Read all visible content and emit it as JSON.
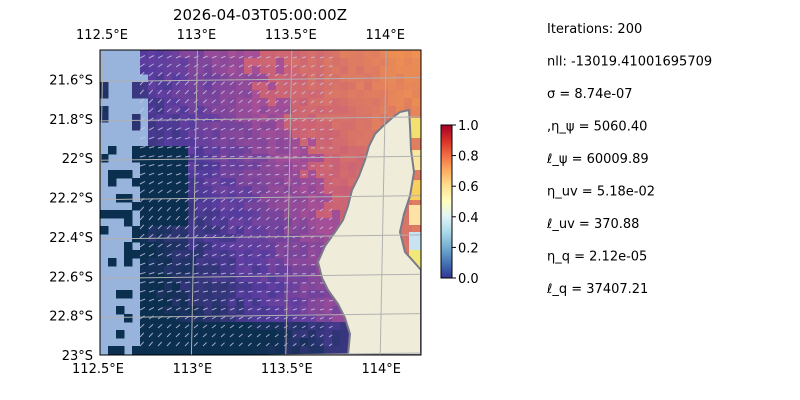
{
  "chart_data": {
    "type": "heatmap",
    "title": "2026-04-03T05:00:00Z",
    "xlabel": "",
    "ylabel": "",
    "x_ticks": [
      "112.5°E",
      "113°E",
      "113.5°E",
      "114°E"
    ],
    "x_tick_values": [
      112.5,
      113.0,
      113.5,
      114.0
    ],
    "y_ticks": [
      "21.6°S",
      "21.8°S",
      "22°S",
      "22.2°S",
      "22.4°S",
      "22.6°S",
      "22.8°S",
      "23°S"
    ],
    "y_tick_values": [
      -21.6,
      -21.8,
      -22.0,
      -22.2,
      -22.4,
      -22.6,
      -22.8,
      -23.0
    ],
    "xlim": [
      112.5,
      114.2
    ],
    "ylim": [
      -23.0,
      -21.45
    ],
    "grid": true,
    "colorbar": {
      "range": [
        0.0,
        1.0
      ],
      "ticks": [
        "0.0",
        "0.2",
        "0.4",
        "0.6",
        "0.8",
        "1.0"
      ],
      "tick_values": [
        0.0,
        0.2,
        0.4,
        0.6,
        0.8,
        1.0
      ],
      "colormap": "RdYlBu_r"
    },
    "colors": {
      "land": "#efedd9",
      "coastline": "#7a7a88",
      "no_data": "#98b4dd",
      "deep": "#0b2f4f",
      "vectors": "#c8c8e8"
    }
  },
  "info_panel": {
    "lines": [
      "Iterations: 200",
      "nll: -13019.41001695709",
      "σ = 8.74e-07",
      ",η_ψ = 5060.40",
      "ℓ_ψ = 60009.89",
      "η_uv = 5.18e-02",
      "ℓ_uv = 370.88",
      "η_q = 2.12e-05",
      "ℓ_q = 37407.21"
    ]
  }
}
